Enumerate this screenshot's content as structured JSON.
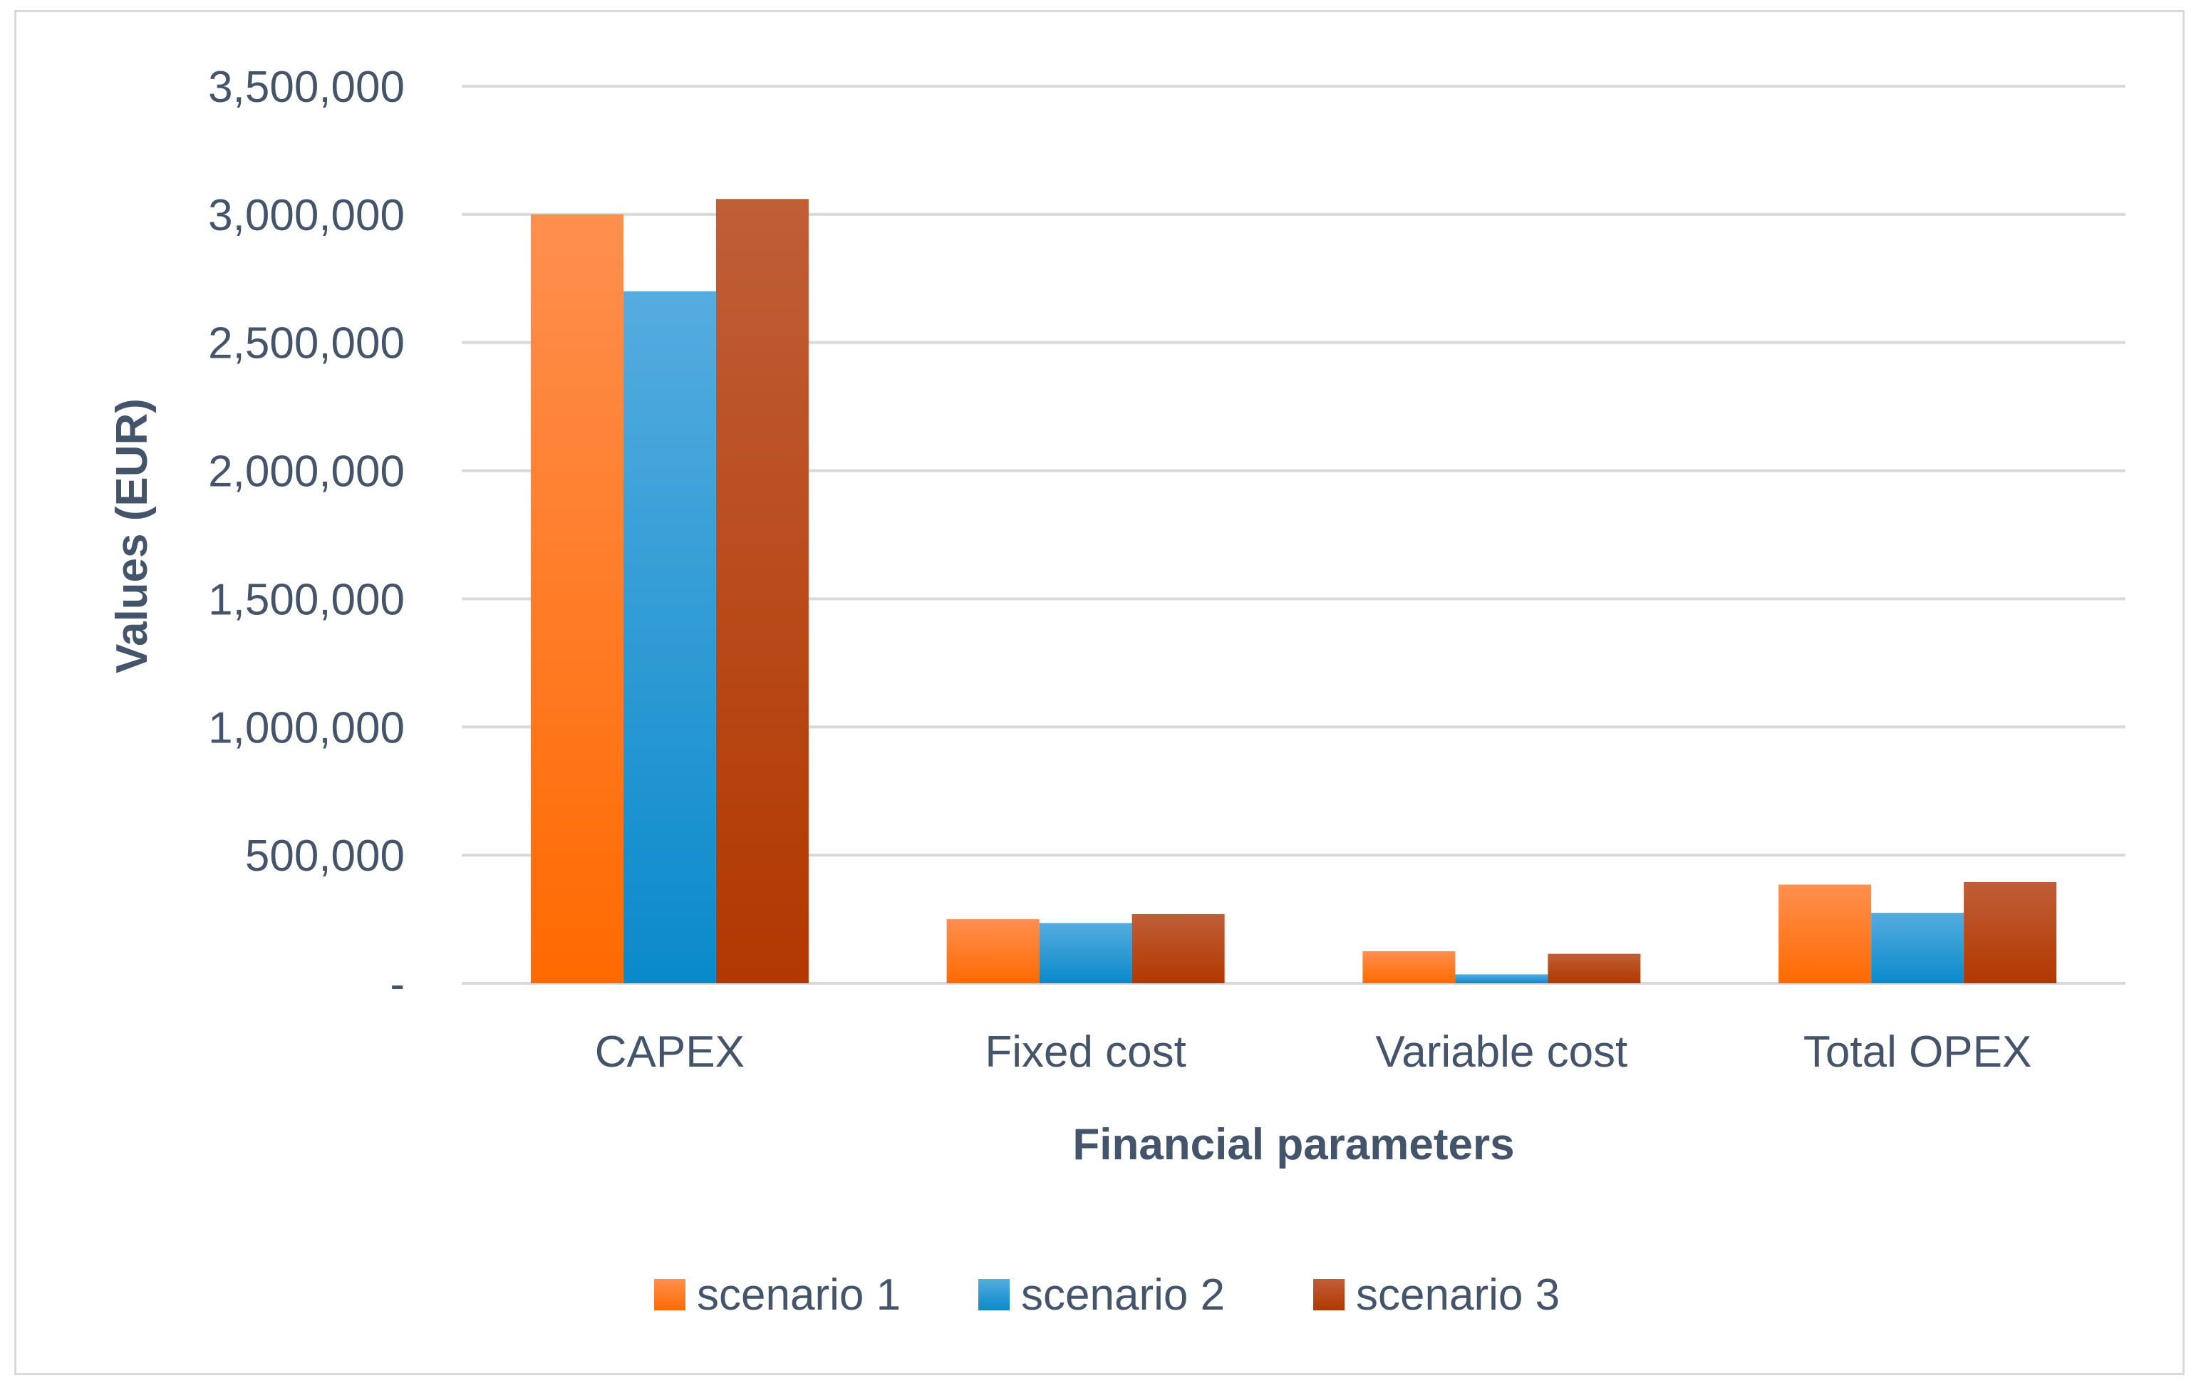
{
  "chart_data": {
    "type": "bar",
    "title": "",
    "xlabel": "Financial parameters",
    "ylabel": "Values (EUR)",
    "ylim": [
      0,
      3500000
    ],
    "yticks": [
      0,
      500000,
      1000000,
      1500000,
      2000000,
      2500000,
      3000000,
      3500000
    ],
    "ytick_labels": [
      "-",
      "500,000",
      "1,000,000",
      "1,500,000",
      "2,000,000",
      "2,500,000",
      "3,000,000",
      "3,500,000"
    ],
    "grid": true,
    "legend_position": "bottom",
    "categories": [
      "CAPEX",
      "Fixed cost",
      "Variable cost",
      "Total OPEX"
    ],
    "series": [
      {
        "name": "scenario 1",
        "values": [
          3000000,
          250000,
          125000,
          385000
        ],
        "color_top": "#ff8f4f",
        "color_bottom": "#ff6a00"
      },
      {
        "name": "scenario 2",
        "values": [
          2700000,
          235000,
          35000,
          275000
        ],
        "color_top": "#55acdf",
        "color_bottom": "#0a8acb"
      },
      {
        "name": "scenario 3",
        "values": [
          3060000,
          270000,
          115000,
          395000
        ],
        "color_top": "#c05e38",
        "color_bottom": "#b23800"
      }
    ]
  }
}
